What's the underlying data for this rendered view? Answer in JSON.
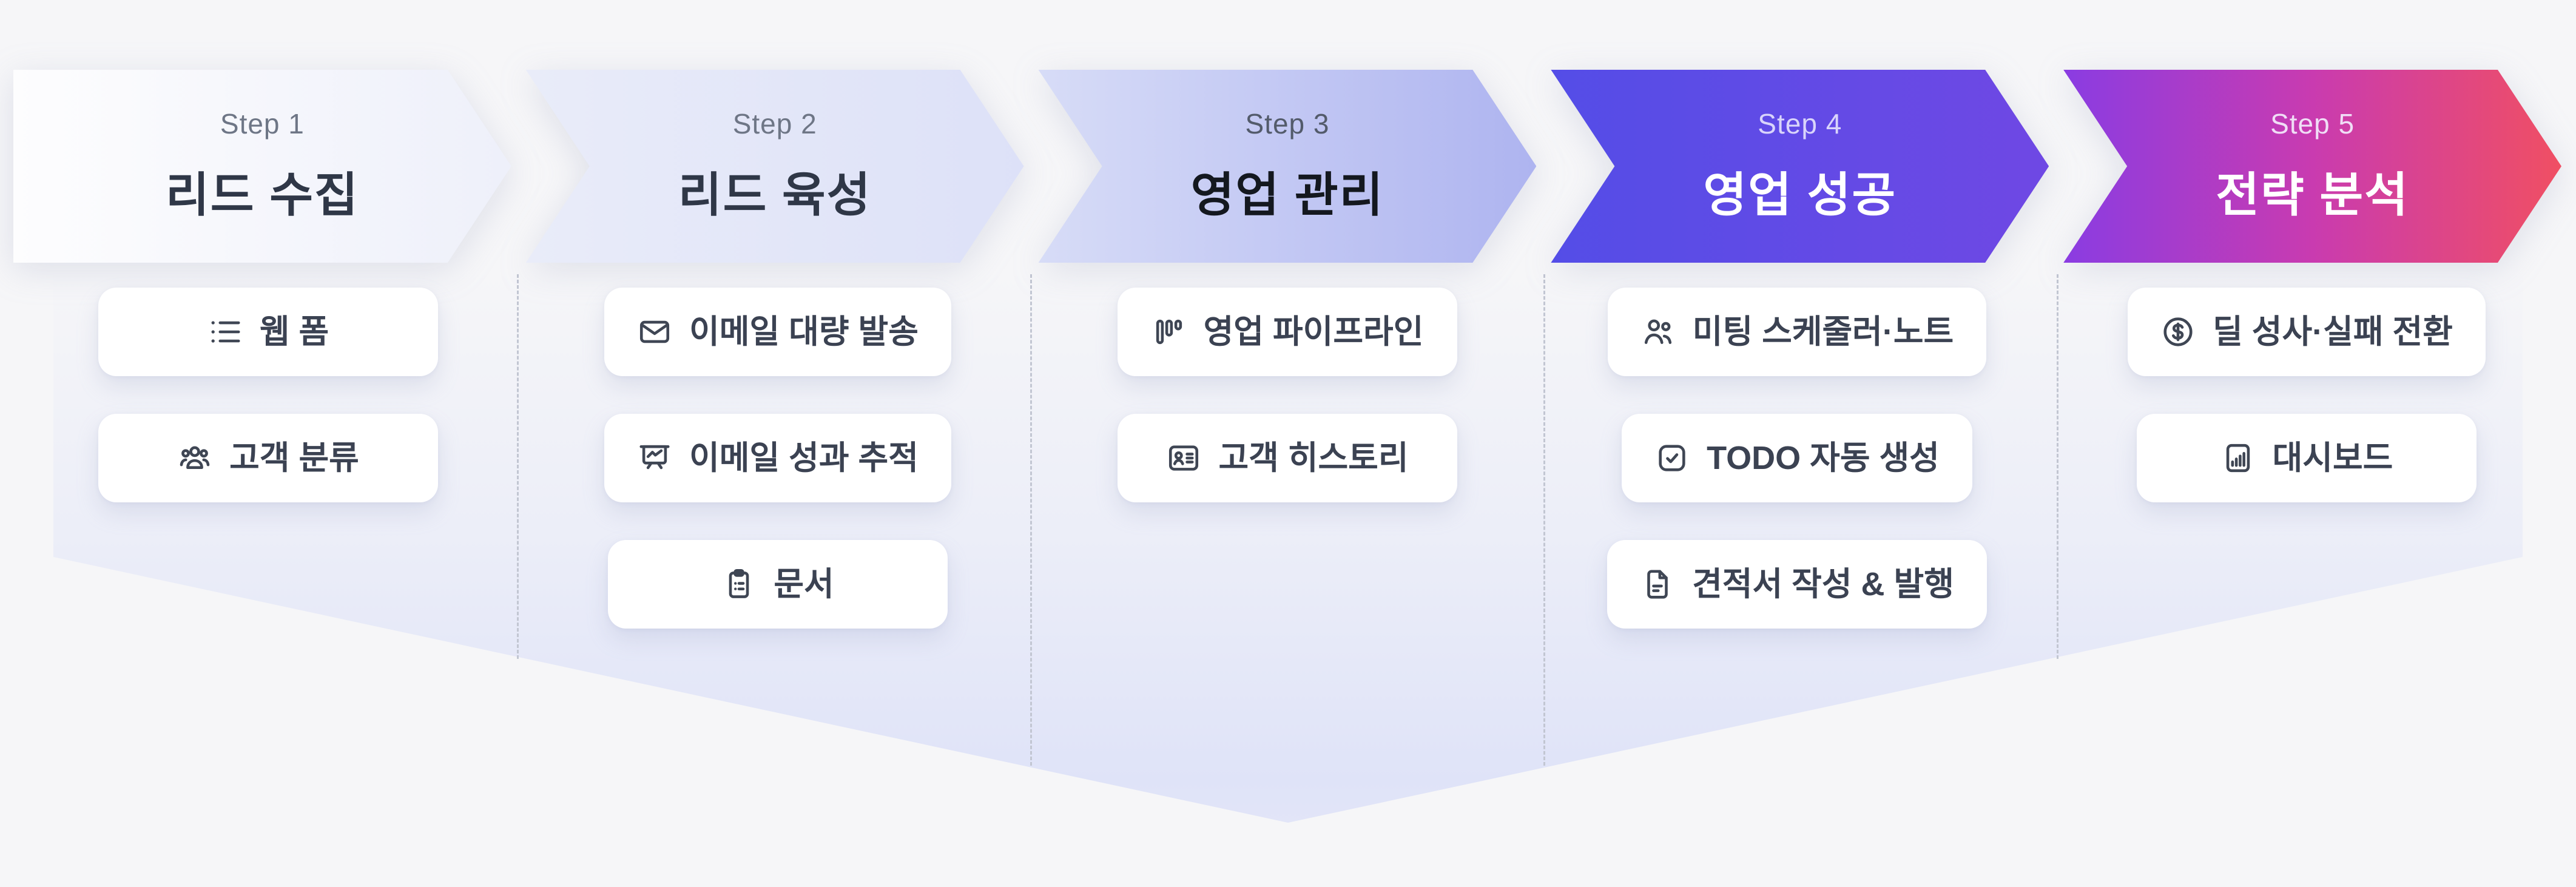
{
  "page": {
    "background_color": "#f6f6f8",
    "divider_color": "#c2c6d2",
    "funnel_tint_color": "#dfe3f8",
    "pill_background": "#ffffff",
    "pill_text_color": "#3b4252"
  },
  "steps": [
    {
      "label": "Step 1",
      "title": "리드 수집",
      "theme": {
        "from": "#fdfdfe",
        "to": "#eef0fa",
        "label_color": "#6e7686",
        "title_color": "#2f3747"
      },
      "features": [
        {
          "icon": "list-icon",
          "label": "웹 폼"
        },
        {
          "icon": "users-group-icon",
          "label": "고객 분류"
        }
      ]
    },
    {
      "label": "Step 2",
      "title": "리드 육성",
      "theme": {
        "from": "#e9ecf9",
        "to": "#dde1f8",
        "label_color": "#6e7686",
        "title_color": "#2f3747"
      },
      "features": [
        {
          "icon": "mail-icon",
          "label": "이메일 대량 발송"
        },
        {
          "icon": "presentation-chart-icon",
          "label": "이메일 성과 추적"
        },
        {
          "icon": "clipboard-list-icon",
          "label": "문서"
        }
      ]
    },
    {
      "label": "Step 3",
      "title": "영업 관리",
      "theme": {
        "from": "#d7dcf7",
        "to": "#aeb4f0",
        "label_color": "#535b6b",
        "title_color": "#14181f"
      },
      "features": [
        {
          "icon": "kanban-icon",
          "label": "영업 파이프라인"
        },
        {
          "icon": "contact-card-icon",
          "label": "고객 히스토리"
        }
      ]
    },
    {
      "label": "Step 4",
      "title": "영업 성공",
      "theme": {
        "from": "#544de7",
        "to": "#6f48e4",
        "label_color": "#d9d4fb",
        "title_color": "#ffffff"
      },
      "features": [
        {
          "icon": "users-icon",
          "label": "미팅 스케줄러·노트"
        },
        {
          "icon": "check-square-icon",
          "label": "TODO 자동 생성"
        },
        {
          "icon": "file-text-icon",
          "label": "견적서 작성 & 발행"
        }
      ]
    },
    {
      "label": "Step 5",
      "title": "전략 분석",
      "theme": {
        "from": "#8a3ce2",
        "mid": "#c93bb0",
        "to": "#f04f63",
        "label_color": "#f0ddf6",
        "title_color": "#ffffff"
      },
      "features": [
        {
          "icon": "dollar-circle-icon",
          "label": "딜 성사·실패 전환"
        },
        {
          "icon": "bar-chart-icon",
          "label": "대시보드"
        }
      ]
    }
  ]
}
